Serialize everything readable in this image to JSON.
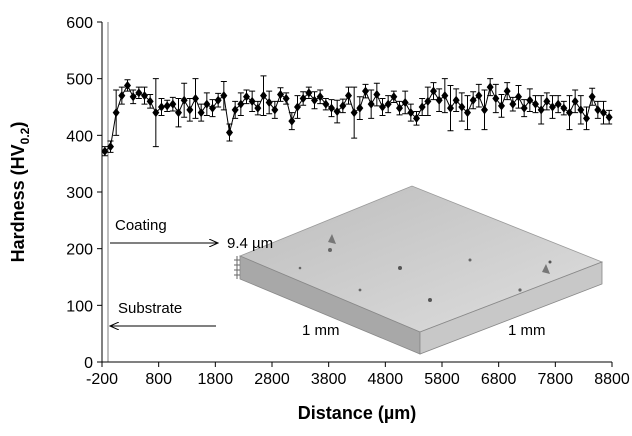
{
  "chart_data": {
    "type": "line",
    "ylabel": "Hardness (HV",
    "ylabel_sub": "0.2",
    "ylabel_close": ")",
    "xlabel": "Distance (µm)",
    "xlim": [
      -200,
      8800
    ],
    "xticks": [
      -200,
      800,
      1800,
      2800,
      3800,
      4800,
      5800,
      6800,
      7800,
      8800
    ],
    "ylim": [
      0,
      600
    ],
    "yticks": [
      0,
      100,
      200,
      300,
      400,
      500,
      600
    ],
    "color": "#000000",
    "annotations": {
      "coating": "Coating",
      "thickness": "9.4 µm",
      "substrate": "Substrate",
      "scale_left": "1 mm",
      "scale_right": "1 mm"
    },
    "x": [
      -150,
      -50,
      50,
      150,
      250,
      350,
      450,
      550,
      650,
      750,
      850,
      950,
      1050,
      1150,
      1250,
      1350,
      1450,
      1550,
      1650,
      1750,
      1850,
      1950,
      2050,
      2150,
      2250,
      2350,
      2450,
      2550,
      2650,
      2750,
      2850,
      2950,
      3050,
      3150,
      3250,
      3350,
      3450,
      3550,
      3650,
      3750,
      3850,
      3950,
      4050,
      4150,
      4250,
      4350,
      4450,
      4550,
      4650,
      4750,
      4850,
      4950,
      5050,
      5150,
      5250,
      5350,
      5450,
      5550,
      5650,
      5750,
      5850,
      5950,
      6050,
      6150,
      6250,
      6350,
      6450,
      6550,
      6650,
      6750,
      6850,
      6950,
      7050,
      7150,
      7250,
      7350,
      7450,
      7550,
      7650,
      7750,
      7850,
      7950,
      8050,
      8150,
      8250,
      8350,
      8450,
      8550,
      8650,
      8750
    ],
    "values": [
      372,
      380,
      440,
      470,
      488,
      468,
      475,
      470,
      460,
      440,
      450,
      452,
      455,
      440,
      462,
      445,
      465,
      440,
      455,
      448,
      462,
      470,
      405,
      445,
      455,
      468,
      460,
      448,
      470,
      458,
      445,
      472,
      465,
      425,
      450,
      465,
      475,
      462,
      468,
      455,
      448,
      442,
      452,
      470,
      440,
      448,
      478,
      455,
      472,
      450,
      455,
      468,
      448,
      458,
      440,
      430,
      450,
      460,
      478,
      462,
      470,
      448,
      462,
      450,
      440,
      462,
      470,
      445,
      485,
      465,
      452,
      478,
      455,
      468,
      448,
      462,
      455,
      445,
      460,
      450,
      455,
      448,
      440,
      460,
      445,
      430,
      468,
      445,
      440,
      432
    ],
    "errors": [
      8,
      10,
      40,
      15,
      10,
      12,
      10,
      15,
      12,
      60,
      15,
      10,
      12,
      25,
      30,
      20,
      35,
      15,
      20,
      15,
      12,
      25,
      15,
      15,
      20,
      12,
      18,
      12,
      35,
      20,
      15,
      12,
      10,
      15,
      20,
      12,
      10,
      15,
      12,
      10,
      15,
      20,
      12,
      15,
      45,
      20,
      12,
      25,
      20,
      15,
      15,
      10,
      12,
      20,
      15,
      12,
      15,
      25,
      15,
      20,
      30,
      40,
      20,
      25,
      30,
      15,
      20,
      35,
      15,
      25,
      20,
      15,
      12,
      20,
      15,
      20,
      15,
      25,
      15,
      20,
      15,
      12,
      30,
      20,
      25,
      20,
      15,
      15,
      20,
      12
    ]
  }
}
